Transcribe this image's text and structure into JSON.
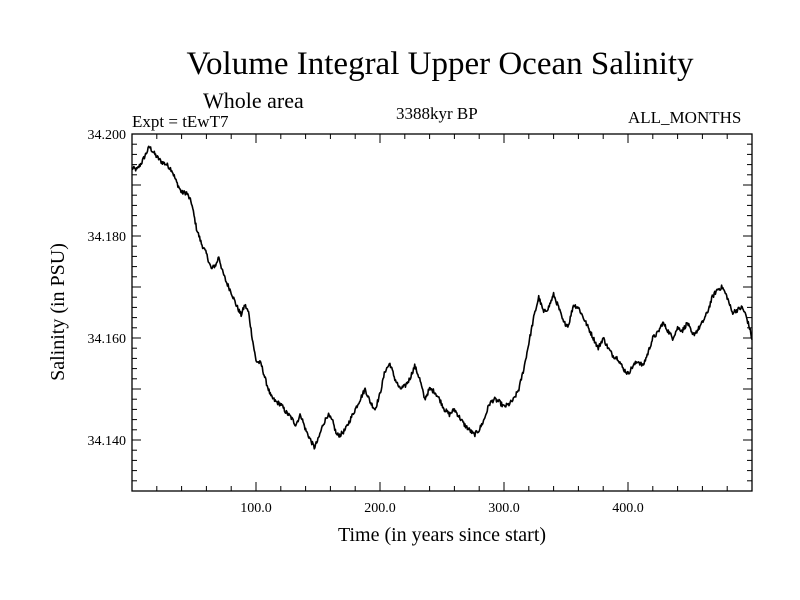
{
  "header": {
    "title": "Volume Integral Upper Ocean Salinity",
    "subtitle": "Whole area",
    "expt": "Expt = tEwT7",
    "period": "3388kyr BP",
    "season": "ALL_MONTHS"
  },
  "chart_data": {
    "type": "line",
    "title": "Volume Integral Upper Ocean Salinity",
    "xlabel": "Time (in years since start)",
    "ylabel": "Salinity (in PSU)",
    "xlim": [
      0,
      500
    ],
    "ylim": [
      34.13,
      34.2
    ],
    "grid": false,
    "x_ticks": [
      100,
      200,
      300,
      400
    ],
    "x_tick_labels": [
      "100.0",
      "200.0",
      "300.0",
      "400.0"
    ],
    "y_ticks": [
      34.14,
      34.16,
      34.18,
      34.2
    ],
    "y_tick_labels": [
      "34.140",
      "34.160",
      "34.180",
      "34.200"
    ],
    "series": [
      {
        "name": "Salinity",
        "color": "#000000",
        "keypoints": [
          [
            0,
            34.1933
          ],
          [
            4,
            34.193
          ],
          [
            8,
            34.1945
          ],
          [
            12,
            34.1965
          ],
          [
            14,
            34.1975
          ],
          [
            17,
            34.1965
          ],
          [
            20,
            34.1955
          ],
          [
            24,
            34.1945
          ],
          [
            28,
            34.194
          ],
          [
            32,
            34.193
          ],
          [
            36,
            34.1905
          ],
          [
            40,
            34.1885
          ],
          [
            44,
            34.1885
          ],
          [
            48,
            34.1865
          ],
          [
            52,
            34.1815
          ],
          [
            56,
            34.1785
          ],
          [
            60,
            34.1765
          ],
          [
            64,
            34.1735
          ],
          [
            68,
            34.1745
          ],
          [
            70,
            34.176
          ],
          [
            73,
            34.173
          ],
          [
            76,
            34.171
          ],
          [
            80,
            34.169
          ],
          [
            84,
            34.1665
          ],
          [
            88,
            34.1645
          ],
          [
            91,
            34.1665
          ],
          [
            94,
            34.165
          ],
          [
            97,
            34.16
          ],
          [
            100,
            34.1555
          ],
          [
            104,
            34.155
          ],
          [
            108,
            34.1515
          ],
          [
            112,
            34.1485
          ],
          [
            116,
            34.1475
          ],
          [
            120,
            34.147
          ],
          [
            124,
            34.1455
          ],
          [
            128,
            34.1445
          ],
          [
            132,
            34.143
          ],
          [
            136,
            34.145
          ],
          [
            140,
            34.142
          ],
          [
            144,
            34.14
          ],
          [
            147,
            34.1385
          ],
          [
            150,
            34.14
          ],
          [
            154,
            34.143
          ],
          [
            158,
            34.145
          ],
          [
            162,
            34.1435
          ],
          [
            165,
            34.141
          ],
          [
            168,
            34.141
          ],
          [
            172,
            34.142
          ],
          [
            176,
            34.144
          ],
          [
            180,
            34.146
          ],
          [
            184,
            34.148
          ],
          [
            188,
            34.15
          ],
          [
            192,
            34.1475
          ],
          [
            196,
            34.146
          ],
          [
            200,
            34.149
          ],
          [
            204,
            34.1535
          ],
          [
            208,
            34.155
          ],
          [
            212,
            34.152
          ],
          [
            216,
            34.15
          ],
          [
            220,
            34.1505
          ],
          [
            224,
            34.152
          ],
          [
            228,
            34.1545
          ],
          [
            232,
            34.152
          ],
          [
            236,
            34.148
          ],
          [
            240,
            34.15
          ],
          [
            244,
            34.1495
          ],
          [
            248,
            34.148
          ],
          [
            252,
            34.146
          ],
          [
            256,
            34.145
          ],
          [
            260,
            34.146
          ],
          [
            264,
            34.1445
          ],
          [
            268,
            34.143
          ],
          [
            272,
            34.142
          ],
          [
            276,
            34.141
          ],
          [
            280,
            34.142
          ],
          [
            284,
            34.144
          ],
          [
            288,
            34.147
          ],
          [
            292,
            34.148
          ],
          [
            296,
            34.1475
          ],
          [
            300,
            34.1465
          ],
          [
            304,
            34.147
          ],
          [
            308,
            34.148
          ],
          [
            312,
            34.15
          ],
          [
            316,
            34.154
          ],
          [
            320,
            34.159
          ],
          [
            324,
            34.164
          ],
          [
            328,
            34.168
          ],
          [
            332,
            34.165
          ],
          [
            336,
            34.166
          ],
          [
            340,
            34.1685
          ],
          [
            344,
            34.166
          ],
          [
            348,
            34.163
          ],
          [
            352,
            34.1625
          ],
          [
            356,
            34.1665
          ],
          [
            360,
            34.166
          ],
          [
            364,
            34.164
          ],
          [
            368,
            34.162
          ],
          [
            372,
            34.16
          ],
          [
            376,
            34.158
          ],
          [
            380,
            34.16
          ],
          [
            384,
            34.158
          ],
          [
            388,
            34.1565
          ],
          [
            392,
            34.156
          ],
          [
            396,
            34.154
          ],
          [
            400,
            34.153
          ],
          [
            404,
            34.1545
          ],
          [
            408,
            34.1555
          ],
          [
            412,
            34.1545
          ],
          [
            416,
            34.157
          ],
          [
            420,
            34.16
          ],
          [
            424,
            34.161
          ],
          [
            428,
            34.163
          ],
          [
            432,
            34.1615
          ],
          [
            436,
            34.16
          ],
          [
            440,
            34.162
          ],
          [
            444,
            34.1615
          ],
          [
            448,
            34.163
          ],
          [
            452,
            34.1605
          ],
          [
            456,
            34.1615
          ],
          [
            460,
            34.163
          ],
          [
            464,
            34.165
          ],
          [
            468,
            34.168
          ],
          [
            472,
            34.1695
          ],
          [
            476,
            34.17
          ],
          [
            480,
            34.168
          ],
          [
            484,
            34.165
          ],
          [
            488,
            34.1655
          ],
          [
            492,
            34.166
          ],
          [
            495,
            34.1645
          ],
          [
            498,
            34.162
          ],
          [
            500,
            34.1598
          ]
        ]
      }
    ]
  }
}
